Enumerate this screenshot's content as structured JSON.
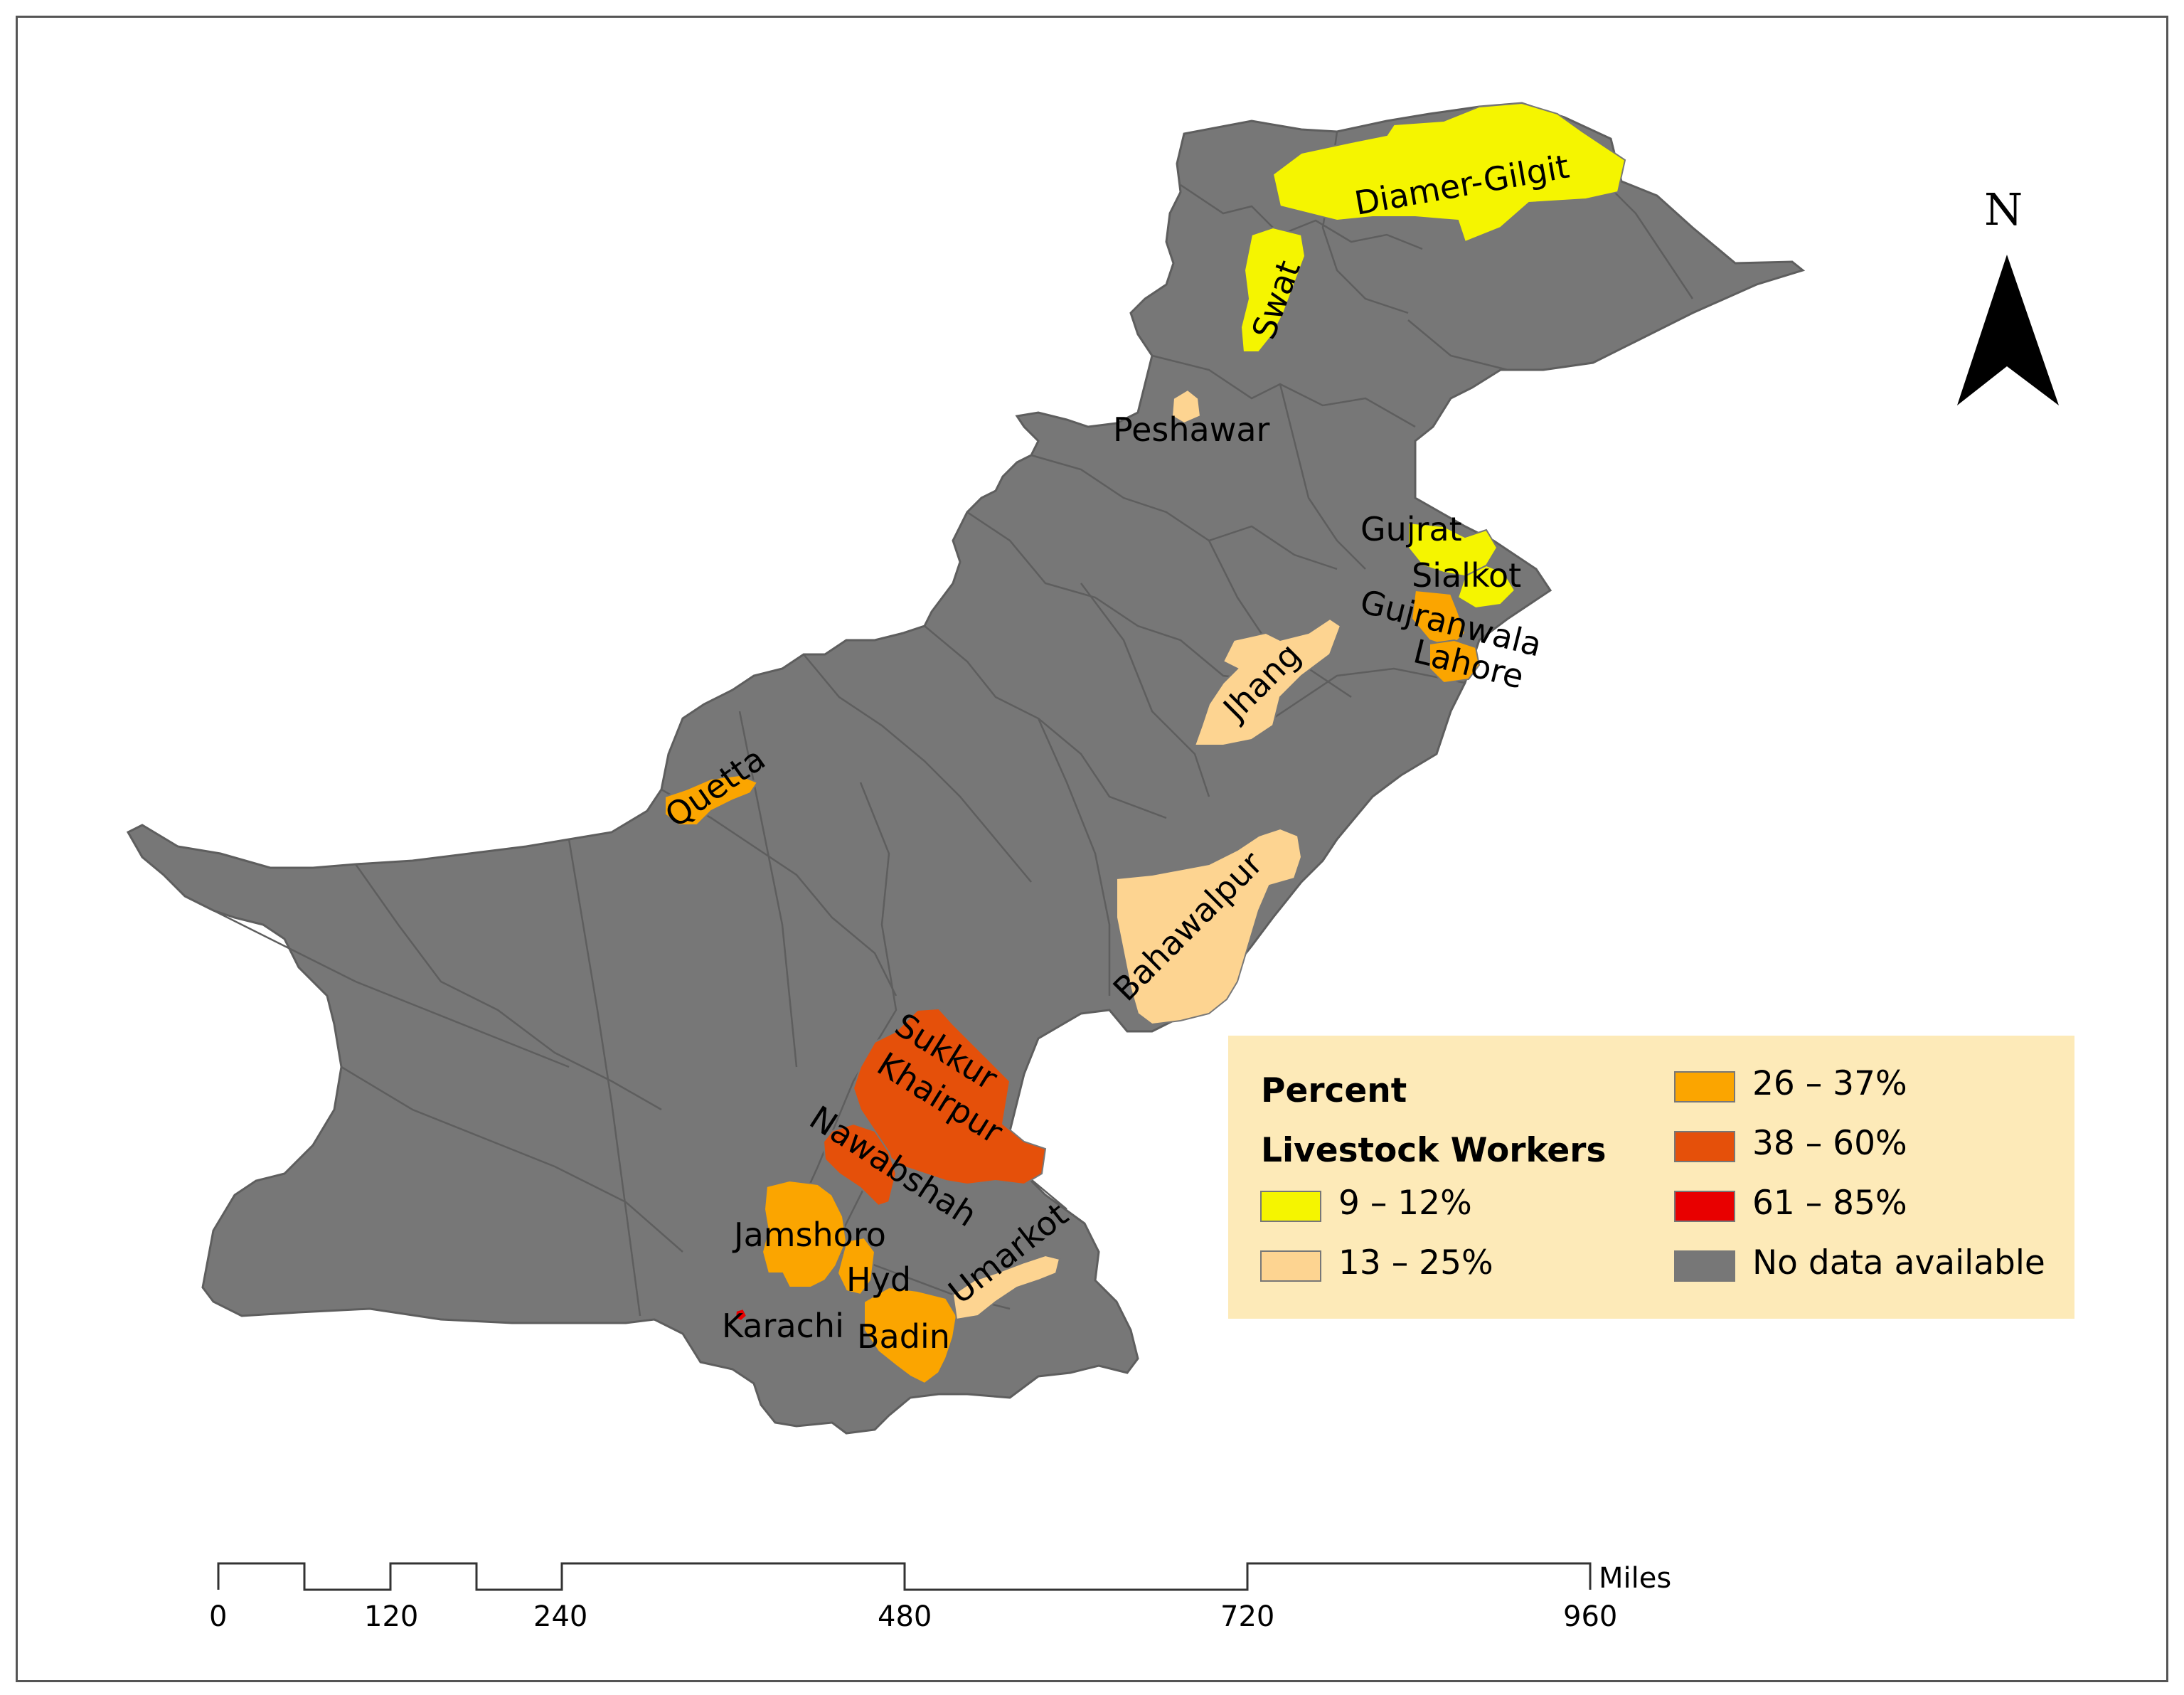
{
  "map": {
    "region_labels": [
      {
        "name": "Diamer-Gilgit"
      },
      {
        "name": "Swat"
      },
      {
        "name": "Peshawar"
      },
      {
        "name": "Gujrat"
      },
      {
        "name": "Sialkot"
      },
      {
        "name": "Gujranwala"
      },
      {
        "name": "Lahore"
      },
      {
        "name": "Jhang"
      },
      {
        "name": "Quetta"
      },
      {
        "name": "Bahawalpur"
      },
      {
        "name": "Sukkur"
      },
      {
        "name": "Khairpur"
      },
      {
        "name": "Nawabshah"
      },
      {
        "name": "Jamshoro"
      },
      {
        "name": "Hyd"
      },
      {
        "name": "Umarkot"
      },
      {
        "name": "Karachi"
      },
      {
        "name": "Badin"
      }
    ],
    "district_classes": {
      "Diamer-Gilgit": "9 – 12%",
      "Swat": "9 – 12%",
      "Gujrat": "9 – 12%",
      "Sialkot": "9 – 12%",
      "Peshawar": "13 – 25%",
      "Jhang": "13 – 25%",
      "Bahawalpur": "13 – 25%",
      "Umarkot": "13 – 25%",
      "Quetta": "26 – 37%",
      "Gujranwala": "26 – 37%",
      "Lahore": "26 – 37%",
      "Jamshoro": "26 – 37%",
      "Hyd": "26 – 37%",
      "Badin": "26 – 37%",
      "Sukkur": "38 – 60%",
      "Khairpur": "38 – 60%",
      "Nawabshah": "38 – 60%",
      "Karachi": "61 – 85%"
    }
  },
  "legend": {
    "title_line1": "Percent",
    "title_line2": "Livestock Workers",
    "classes": [
      {
        "label": "9 – 12%",
        "color": "#f5f500"
      },
      {
        "label": "13 – 25%",
        "color": "#fdd491"
      },
      {
        "label": "26 – 37%",
        "color": "#fba500"
      },
      {
        "label": "38 – 60%",
        "color": "#e5500a"
      },
      {
        "label": "61 – 85%",
        "color": "#e80000"
      },
      {
        "label": "No data available",
        "color": "#777777"
      }
    ]
  },
  "north_arrow": {
    "label": "N"
  },
  "scale_bar": {
    "unit": "Miles",
    "ticks": [
      "0",
      "120",
      "240",
      "480",
      "720",
      "960"
    ]
  },
  "colors": {
    "no_data": "#777777",
    "district_border": "#5e5e5e",
    "legend_background": "#fdeab8"
  }
}
